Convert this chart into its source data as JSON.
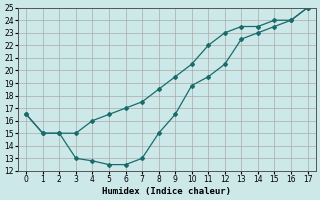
{
  "xlabel": "Humidex (Indice chaleur)",
  "background_color": "#cce8e8",
  "grid_color": "#aaaaaa",
  "line_color": "#1a6b6b",
  "x_upper": [
    0,
    1,
    2,
    3,
    4,
    5,
    6,
    7,
    8,
    9,
    10,
    11,
    12,
    13,
    14,
    15,
    16,
    17
  ],
  "y_upper": [
    16.5,
    15.0,
    15.0,
    15.0,
    16.0,
    16.5,
    17.0,
    17.5,
    18.5,
    19.5,
    20.5,
    22.0,
    23.0,
    23.5,
    23.5,
    24.0,
    24.0,
    25.0
  ],
  "x_lower": [
    0,
    1,
    2,
    3,
    4,
    5,
    6,
    7,
    8,
    9,
    10,
    11,
    12,
    13,
    14,
    15,
    16,
    17
  ],
  "y_lower": [
    16.5,
    15.0,
    15.0,
    13.0,
    12.8,
    12.5,
    12.5,
    13.0,
    15.0,
    16.5,
    18.8,
    19.5,
    20.5,
    22.5,
    23.0,
    23.5,
    24.0,
    25.0
  ],
  "ylim": [
    12,
    25
  ],
  "xlim": [
    -0.5,
    17.5
  ],
  "yticks": [
    12,
    13,
    14,
    15,
    16,
    17,
    18,
    19,
    20,
    21,
    22,
    23,
    24,
    25
  ],
  "xticks": [
    0,
    1,
    2,
    3,
    4,
    5,
    6,
    7,
    8,
    9,
    10,
    11,
    12,
    13,
    14,
    15,
    16,
    17
  ]
}
